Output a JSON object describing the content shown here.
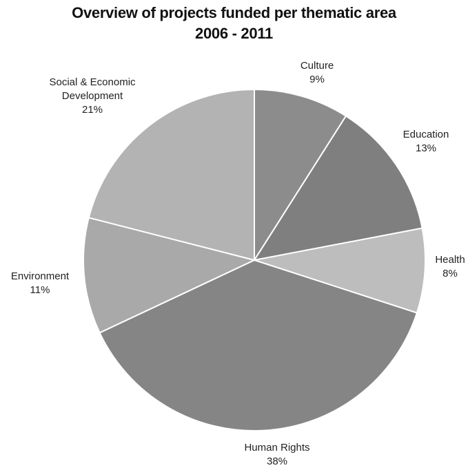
{
  "chart_data": {
    "type": "pie",
    "title": [
      "Overview of projects funded per thematic area",
      "2006 - 2011"
    ],
    "slices": [
      {
        "label": [
          "Culture"
        ],
        "value": 9,
        "display": "9%",
        "color": "#8c8c8c"
      },
      {
        "label": [
          "Education"
        ],
        "value": 13,
        "display": "13%",
        "color": "#7f7f7f"
      },
      {
        "label": [
          "Health"
        ],
        "value": 8,
        "display": "8%",
        "color": "#bdbdbd"
      },
      {
        "label": [
          "Human Rights"
        ],
        "value": 38,
        "display": "38%",
        "color": "#858585"
      },
      {
        "label": [
          "Environment"
        ],
        "value": 11,
        "display": "11%",
        "color": "#a9a9a9"
      },
      {
        "label": [
          "Social & Economic",
          "Development"
        ],
        "value": 21,
        "display": "21%",
        "color": "#b3b3b3"
      }
    ]
  }
}
